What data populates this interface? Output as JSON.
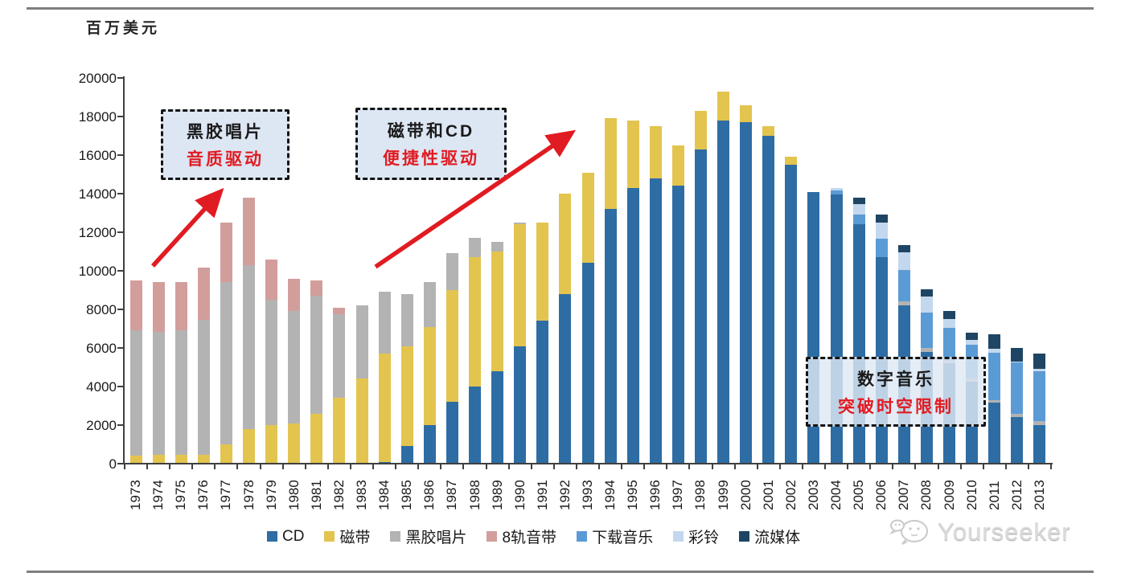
{
  "chart_data": {
    "type": "bar",
    "stacked": true,
    "unit_label": "百万美元",
    "ylim": [
      0,
      20000
    ],
    "ytick_step": 2000,
    "ytick_labels": [
      "0",
      "2000",
      "4000",
      "6000",
      "8000",
      "10000",
      "12000",
      "14000",
      "16000",
      "18000",
      "20000"
    ],
    "grid": false,
    "legend_position": "bottom",
    "categories": [
      "1973",
      "1974",
      "1975",
      "1976",
      "1977",
      "1978",
      "1979",
      "1980",
      "1981",
      "1982",
      "1983",
      "1984",
      "1985",
      "1986",
      "1987",
      "1988",
      "1989",
      "1990",
      "1991",
      "1992",
      "1993",
      "1994",
      "1995",
      "1996",
      "1997",
      "1998",
      "1999",
      "2000",
      "2001",
      "2002",
      "2003",
      "2004",
      "2005",
      "2006",
      "2007",
      "2008",
      "2009",
      "2010",
      "2011",
      "2012",
      "2013"
    ],
    "series": [
      {
        "name": "CD",
        "color": "#2e6da4",
        "values": [
          0,
          0,
          0,
          0,
          0,
          0,
          0,
          0,
          0,
          0,
          0,
          100,
          900,
          2000,
          3200,
          4000,
          4800,
          6100,
          7400,
          8800,
          10400,
          13200,
          14300,
          14800,
          14400,
          16300,
          17800,
          17700,
          17000,
          15500,
          14100,
          13950,
          12400,
          10700,
          8200,
          5800,
          5200,
          4250,
          3150,
          2400,
          2000
        ]
      },
      {
        "name": "磁带",
        "color": "#e3c44f",
        "values": [
          400,
          450,
          450,
          450,
          1000,
          1800,
          2000,
          2100,
          2600,
          3400,
          4400,
          5600,
          5200,
          5100,
          5800,
          6700,
          6200,
          6300,
          5100,
          5200,
          4700,
          4700,
          3500,
          2700,
          2100,
          2000,
          1500,
          900,
          500,
          400,
          0,
          0,
          0,
          0,
          0,
          0,
          0,
          0,
          0,
          0,
          0
        ]
      },
      {
        "name": "黑胶唱片",
        "color": "#b3b3b3",
        "values": [
          6500,
          6400,
          6450,
          7000,
          8400,
          8500,
          6500,
          5800,
          6100,
          4350,
          3800,
          3200,
          2700,
          2300,
          1900,
          1000,
          500,
          100,
          0,
          0,
          0,
          0,
          0,
          0,
          0,
          0,
          0,
          0,
          0,
          0,
          0,
          0,
          0,
          0,
          200,
          200,
          150,
          150,
          150,
          200,
          200
        ]
      },
      {
        "name": "8轨音带",
        "color": "#d29e9c",
        "values": [
          2600,
          2550,
          2500,
          2700,
          3100,
          3500,
          2100,
          1700,
          800,
          350,
          0,
          0,
          0,
          0,
          0,
          0,
          0,
          0,
          0,
          0,
          0,
          0,
          0,
          0,
          0,
          0,
          0,
          0,
          0,
          0,
          0,
          0,
          0,
          0,
          0,
          0,
          0,
          0,
          0,
          0,
          0
        ]
      },
      {
        "name": "下载音乐",
        "color": "#5b9bd5",
        "values": [
          0,
          0,
          0,
          0,
          0,
          0,
          0,
          0,
          0,
          0,
          0,
          0,
          0,
          0,
          0,
          0,
          0,
          0,
          0,
          0,
          0,
          0,
          0,
          0,
          0,
          0,
          0,
          0,
          0,
          0,
          0,
          230,
          500,
          950,
          1650,
          1850,
          1700,
          1750,
          2450,
          2650,
          2600
        ]
      },
      {
        "name": "彩铃",
        "color": "#c3d8ee",
        "values": [
          0,
          0,
          0,
          0,
          0,
          0,
          0,
          0,
          0,
          0,
          0,
          0,
          0,
          0,
          0,
          0,
          0,
          0,
          0,
          0,
          0,
          0,
          0,
          0,
          0,
          0,
          0,
          0,
          0,
          0,
          0,
          120,
          550,
          850,
          900,
          800,
          450,
          250,
          200,
          50,
          100
        ]
      },
      {
        "name": "流媒体",
        "color": "#1e4564",
        "values": [
          0,
          0,
          0,
          0,
          0,
          0,
          0,
          0,
          0,
          0,
          0,
          0,
          0,
          0,
          0,
          0,
          0,
          0,
          0,
          0,
          0,
          0,
          0,
          0,
          0,
          0,
          0,
          0,
          0,
          0,
          0,
          0,
          350,
          400,
          400,
          400,
          400,
          400,
          750,
          700,
          800
        ]
      }
    ]
  },
  "annotations": {
    "accent_red": "#e11b22",
    "box1": {
      "line1": "黑胶唱片",
      "line2": "音质驱动"
    },
    "box2": {
      "line1": "磁带和CD",
      "line2": "便捷性驱动"
    },
    "box3": {
      "line1": "数字音乐",
      "line2": "突破时空限制"
    }
  },
  "watermark": {
    "text": "Yourseeker"
  }
}
